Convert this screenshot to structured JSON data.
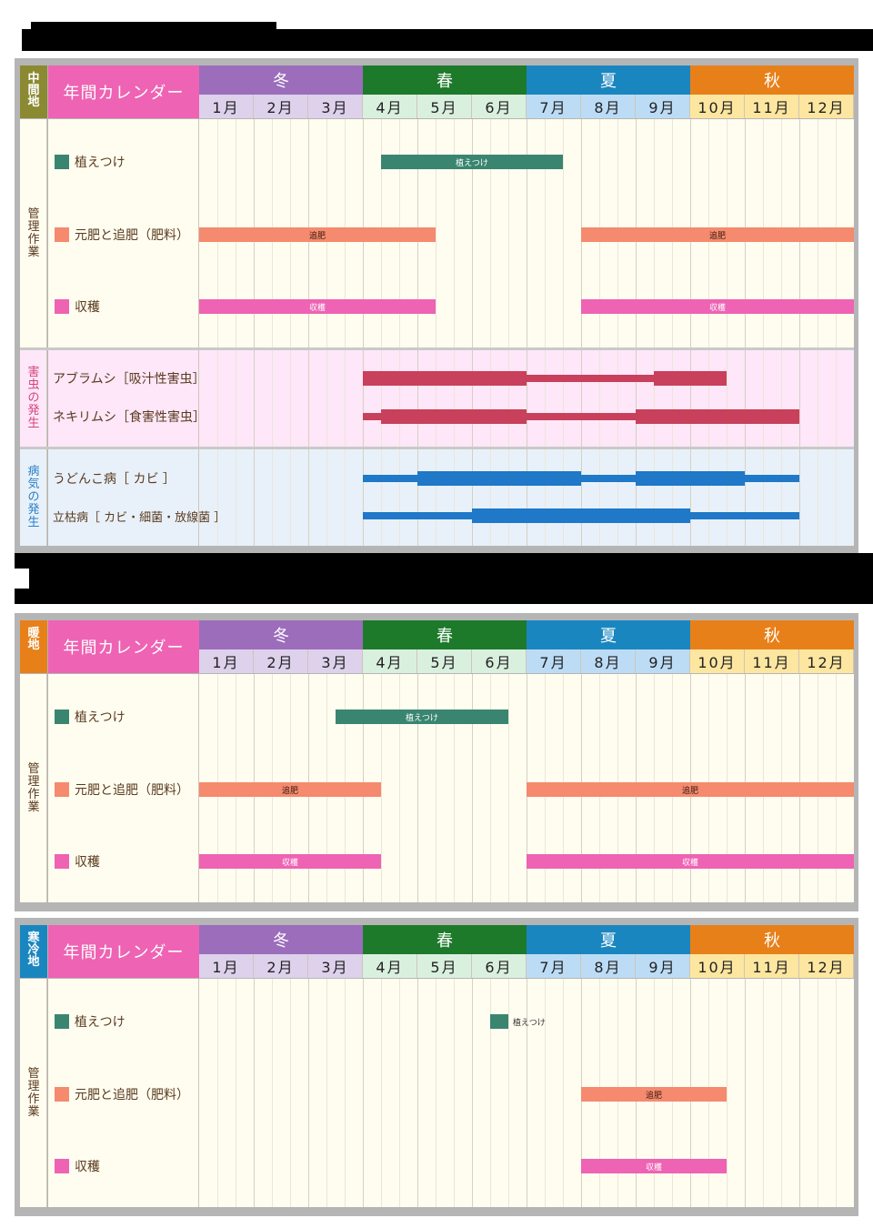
{
  "colors": {
    "winter": "#9b6dbb",
    "spring": "#1c7a2a",
    "summer": "#1a86c0",
    "autumn": "#e8801a",
    "month_winter": "#ddd1ec",
    "month_spring": "#daf0de",
    "month_summer": "#bcdcf6",
    "month_autumn": "#fde6a0",
    "title_pink": "#ee63b3",
    "planting": "#3a8570",
    "fertilizer": "#f58a6e",
    "harvest": "#ee63b3",
    "pest": "#c8405c",
    "disease": "#1f78c8",
    "region_middle": "#8b8a32",
    "region_warm": "#e8801a",
    "region_cold": "#1a86c0"
  },
  "header": {
    "title": "年間カレンダー",
    "seasons": [
      "冬",
      "春",
      "夏",
      "秋"
    ],
    "months": [
      "1月",
      "2月",
      "3月",
      "4月",
      "5月",
      "6月",
      "7月",
      "8月",
      "9月",
      "10月",
      "11月",
      "12月"
    ]
  },
  "legend": {
    "planting": "植えつけ",
    "fertilizer": "元肥と追肥（肥料）",
    "harvest": "収穫"
  },
  "groups": {
    "management": "管理作業",
    "pests": "害虫の発生",
    "disease": "病気の発生"
  },
  "bar_labels": {
    "planting": "植えつけ",
    "fertilizer": "追肥",
    "harvest": "収穫"
  },
  "pests": [
    {
      "name": "アブラムシ［吸汁性害虫］"
    },
    {
      "name": "ネキリムシ［食害性害虫］"
    }
  ],
  "diseases": [
    {
      "name": "うどんこ病［ カビ ］"
    },
    {
      "name": "立枯病［ カビ・細菌・放線菌 ］"
    }
  ],
  "calendars": [
    {
      "region": "中間地",
      "region_chars": [
        "中",
        "間",
        "地"
      ]
    },
    {
      "region": "暖地",
      "region_chars": [
        "暖",
        "地"
      ]
    },
    {
      "region": "寒冷地",
      "region_chars": [
        "寒",
        "冷",
        "地"
      ]
    }
  ],
  "chart_data": [
    {
      "type": "table",
      "title": "年間カレンダー（中間地）",
      "unit": "month thirds (上旬/中旬/下旬), 0 = start of January, 36 = end of December",
      "categories": [
        "1月",
        "2月",
        "3月",
        "4月",
        "5月",
        "6月",
        "7月",
        "8月",
        "9月",
        "10月",
        "11月",
        "12月"
      ],
      "series": [
        {
          "name": "植えつけ",
          "spans": [
            [
              10,
              20
            ]
          ]
        },
        {
          "name": "元肥と追肥（肥料）",
          "label": "追肥",
          "spans": [
            [
              0,
              13
            ],
            [
              21,
              36
            ]
          ]
        },
        {
          "name": "収穫",
          "spans": [
            [
              0,
              13
            ],
            [
              21,
              36
            ]
          ]
        },
        {
          "name": "アブラムシ［吸汁性害虫］",
          "heavy": [
            [
              9,
              18
            ],
            [
              25,
              29
            ]
          ],
          "light": [
            [
              18,
              25
            ]
          ]
        },
        {
          "name": "ネキリムシ［食害性害虫］",
          "heavy": [
            [
              10,
              18
            ],
            [
              24,
              33
            ]
          ],
          "light": [
            [
              9,
              10
            ],
            [
              18,
              24
            ]
          ]
        },
        {
          "name": "うどんこ病［カビ］",
          "heavy": [
            [
              12,
              21
            ],
            [
              24,
              30
            ]
          ],
          "light": [
            [
              9,
              12
            ],
            [
              21,
              24
            ],
            [
              30,
              33
            ]
          ]
        },
        {
          "name": "立枯病［カビ・細菌・放線菌］",
          "heavy": [
            [
              15,
              27
            ]
          ],
          "light": [
            [
              9,
              15
            ],
            [
              27,
              33
            ]
          ]
        }
      ]
    },
    {
      "type": "table",
      "title": "年間カレンダー（暖地）",
      "unit": "month thirds, 0 = start of January",
      "categories": [
        "1月",
        "2月",
        "3月",
        "4月",
        "5月",
        "6月",
        "7月",
        "8月",
        "9月",
        "10月",
        "11月",
        "12月"
      ],
      "series": [
        {
          "name": "植えつけ",
          "spans": [
            [
              7.5,
              17
            ]
          ]
        },
        {
          "name": "元肥と追肥（肥料）",
          "label": "追肥",
          "spans": [
            [
              0,
              10
            ],
            [
              18,
              36
            ]
          ]
        },
        {
          "name": "収穫",
          "spans": [
            [
              0,
              10
            ],
            [
              18,
              36
            ]
          ]
        }
      ]
    },
    {
      "type": "table",
      "title": "年間カレンダー（寒冷地）",
      "unit": "month thirds, 0 = start of January",
      "categories": [
        "1月",
        "2月",
        "3月",
        "4月",
        "5月",
        "6月",
        "7月",
        "8月",
        "9月",
        "10月",
        "11月",
        "12月"
      ],
      "series": [
        {
          "name": "植えつけ",
          "spans": [
            [
              16,
              17
            ]
          ]
        },
        {
          "name": "元肥と追肥（肥料）",
          "label": "追肥",
          "spans": [
            [
              21,
              29
            ]
          ]
        },
        {
          "name": "収穫",
          "spans": [
            [
              21,
              29
            ]
          ]
        }
      ]
    }
  ]
}
